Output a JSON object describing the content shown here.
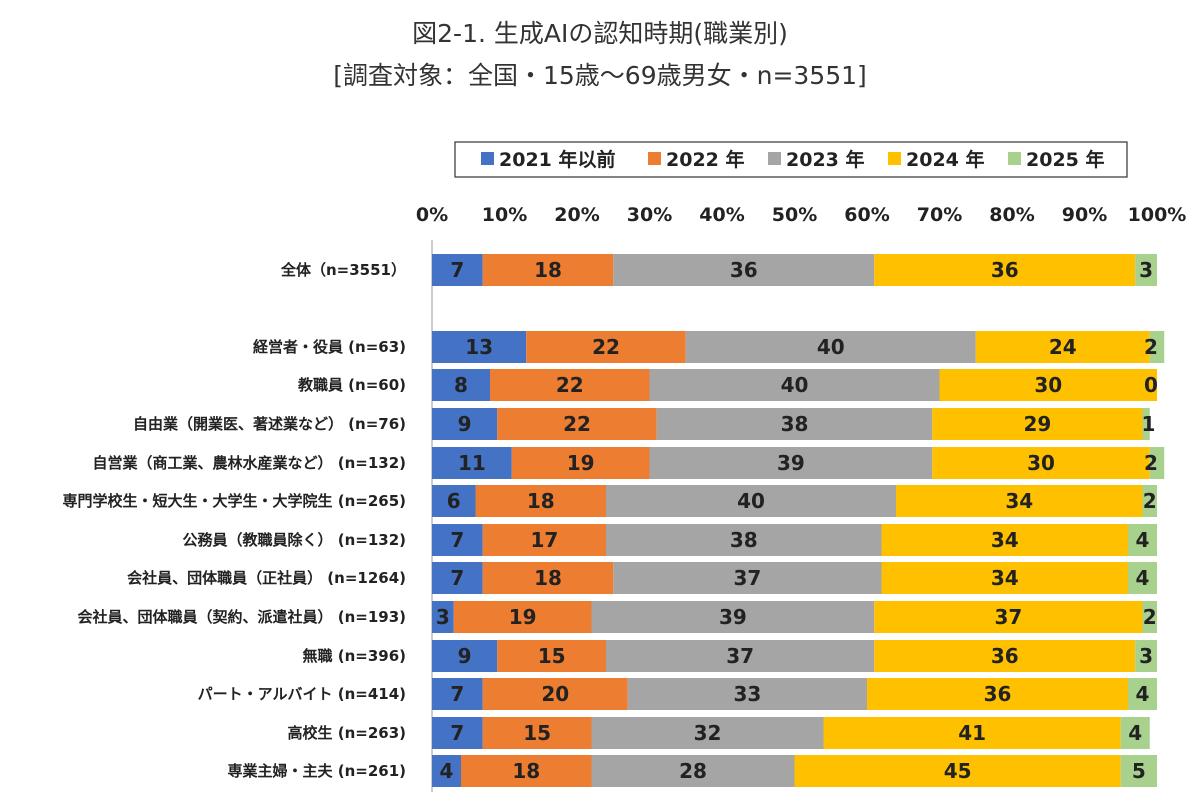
{
  "header": {
    "title": "図2-1. 生成AIの認知時期(職業別)",
    "subtitle": "[調査対象：全国・15歳～69歳男女・n=3551]"
  },
  "chart_data": {
    "type": "bar",
    "orientation": "horizontal",
    "stacked": true,
    "percent_stacked": true,
    "title": "図2-1. 生成AIの認知時期(職業別)",
    "subtitle": "[調査対象：全国・15歳～69歳男女・n=3551]",
    "xlabel": "",
    "ylabel": "",
    "xlim": [
      0,
      100
    ],
    "x_ticks": [
      "0%",
      "10%",
      "20%",
      "30%",
      "40%",
      "50%",
      "60%",
      "70%",
      "80%",
      "90%",
      "100%"
    ],
    "legend_position": "top",
    "categories": [
      "全体（n=3551）",
      "経営者・役員 (n=63)",
      "教職員 (n=60)",
      "自由業（開業医、著述業など） (n=76)",
      "自営業（商工業、農林水産業など） (n=132)",
      "専門学校生・短大生・大学生・大学院生 (n=265)",
      "公務員（教職員除く） (n=132)",
      "会社員、団体職員（正社員） (n=1264)",
      "会社員、団体職員（契約、派遣社員） (n=193)",
      "無職 (n=396)",
      "パート・アルバイト (n=414)",
      "高校生 (n=263)",
      "専業主婦・主夫 (n=261)"
    ],
    "series": [
      {
        "name": "2021 年以前",
        "color": "#4472C4",
        "values": [
          7,
          13,
          8,
          9,
          11,
          6,
          7,
          7,
          3,
          9,
          7,
          7,
          4
        ]
      },
      {
        "name": "2022 年",
        "color": "#ED7D31",
        "values": [
          18,
          22,
          22,
          22,
          19,
          18,
          17,
          18,
          19,
          15,
          20,
          15,
          18
        ]
      },
      {
        "name": "2023 年",
        "color": "#A5A5A5",
        "values": [
          36,
          40,
          40,
          38,
          39,
          40,
          38,
          37,
          39,
          37,
          33,
          32,
          28
        ]
      },
      {
        "name": "2024 年",
        "color": "#FFC000",
        "values": [
          36,
          24,
          30,
          29,
          30,
          34,
          34,
          34,
          37,
          36,
          36,
          41,
          45
        ]
      },
      {
        "name": "2025 年",
        "color": "#A9D18E",
        "values": [
          3,
          2,
          0,
          1,
          2,
          2,
          4,
          4,
          2,
          3,
          4,
          4,
          5
        ]
      }
    ]
  }
}
